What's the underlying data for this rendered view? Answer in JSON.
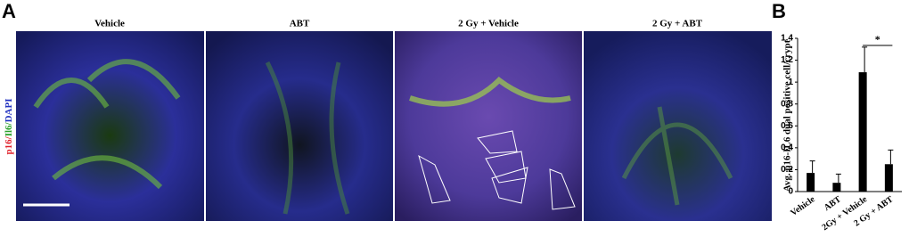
{
  "panel_a": {
    "label": "A",
    "titles": [
      "Vehicle",
      "ABT",
      "2 Gy + Vehicle",
      "2 Gy + ABT"
    ],
    "stain_label": [
      "p16/",
      "Il6/",
      "DAPI"
    ]
  },
  "chart_data": {
    "type": "bar",
    "label": "B",
    "ylabel": "Avg. p16-IL6 dual positive cell/crypt",
    "categories": [
      "Vehicle",
      "ABT",
      "2Gy + Vehicle",
      "2 Gy + ABT"
    ],
    "values": [
      0.17,
      0.08,
      1.09,
      0.25
    ],
    "errors": [
      0.11,
      0.08,
      0.23,
      0.13
    ],
    "color": "#000000",
    "ylim": [
      0,
      1.4
    ],
    "yticks": [
      0,
      0.2,
      0.4,
      0.6,
      0.8,
      1,
      1.2,
      1.4
    ],
    "significance": "*"
  }
}
